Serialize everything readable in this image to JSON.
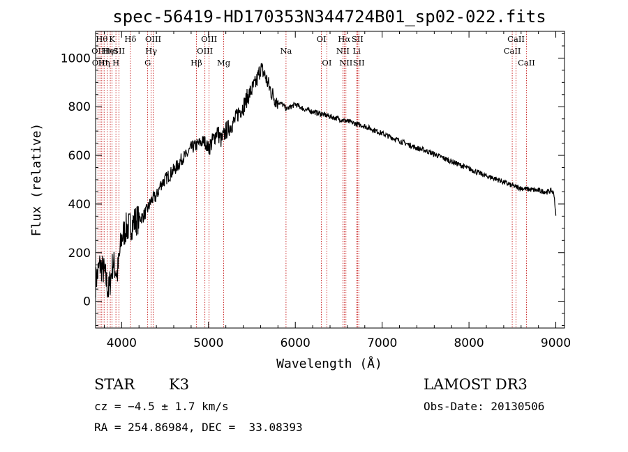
{
  "chart_data": {
    "type": "line",
    "title": "spec-56419-HD170353N344724B01_sp02-022.fits",
    "xlabel": "Wavelength (Å)",
    "ylabel": "Flux (relative)",
    "xlim": [
      3700,
      9100
    ],
    "ylim": [
      -110,
      1110
    ],
    "x_ticks": [
      4000,
      5000,
      6000,
      7000,
      8000,
      9000
    ],
    "y_ticks": [
      0,
      200,
      400,
      600,
      800,
      1000
    ],
    "grid": false,
    "series": [
      {
        "x": [
          3700,
          3750,
          3800,
          3850,
          3900,
          3950,
          4000,
          4050,
          4100,
          4150,
          4200,
          4250,
          4300,
          4350,
          4400,
          4450,
          4500,
          4550,
          4600,
          4650,
          4700,
          4750,
          4800,
          4850,
          4900,
          4950,
          5000,
          5050,
          5100,
          5150,
          5200,
          5250,
          5300,
          5350,
          5400,
          5450,
          5500,
          5550,
          5600,
          5650,
          5700,
          5750,
          5800,
          5850,
          5900,
          5950,
          6000,
          6100,
          6200,
          6300,
          6400,
          6500,
          6600,
          6700,
          6800,
          6900,
          7000,
          7100,
          7200,
          7300,
          7400,
          7500,
          7600,
          7700,
          7800,
          7900,
          8000,
          8100,
          8200,
          8300,
          8400,
          8500,
          8600,
          8700,
          8800,
          8900,
          8950,
          8980,
          9000
        ],
        "y": [
          80,
          150,
          120,
          40,
          160,
          110,
          260,
          300,
          310,
          330,
          340,
          350,
          380,
          420,
          430,
          480,
          500,
          520,
          540,
          560,
          590,
          600,
          630,
          640,
          650,
          660,
          630,
          660,
          700,
          660,
          700,
          720,
          740,
          780,
          800,
          840,
          870,
          900,
          960,
          930,
          880,
          840,
          820,
          810,
          790,
          800,
          810,
          790,
          780,
          770,
          760,
          750,
          740,
          730,
          720,
          705,
          690,
          675,
          660,
          645,
          630,
          620,
          605,
          590,
          575,
          560,
          545,
          530,
          515,
          505,
          490,
          475,
          465,
          460,
          455,
          450,
          455,
          440,
          350
        ]
      }
    ],
    "line_markers": [
      {
        "wl": 3727,
        "label": "OII",
        "row": 1
      },
      {
        "wl": 3750,
        "label": "OIII",
        "row": 2
      },
      {
        "wl": 3771,
        "label": "Hθ",
        "row": 0
      },
      {
        "wl": 3798,
        "label": "Hη",
        "row": 2
      },
      {
        "wl": 3835,
        "label": "Hη",
        "row": 1
      },
      {
        "wl": 3869,
        "label": "HeI",
        "row": 1
      },
      {
        "wl": 3889,
        "label": "K",
        "row": 0
      },
      {
        "wl": 3934,
        "label": "H",
        "row": 2
      },
      {
        "wl": 3970,
        "label": "SII",
        "row": 1
      },
      {
        "wl": 4101,
        "label": "Hδ",
        "row": 0
      },
      {
        "wl": 4300,
        "label": "G",
        "row": 2
      },
      {
        "wl": 4340,
        "label": "Hγ",
        "row": 1
      },
      {
        "wl": 4363,
        "label": "OIII",
        "row": 0
      },
      {
        "wl": 4861,
        "label": "Hβ",
        "row": 2
      },
      {
        "wl": 4959,
        "label": "OIII",
        "row": 1
      },
      {
        "wl": 5007,
        "label": "OIII",
        "row": 0
      },
      {
        "wl": 5175,
        "label": "Mg",
        "row": 2
      },
      {
        "wl": 5893,
        "label": "Na",
        "row": 1
      },
      {
        "wl": 6300,
        "label": "OI",
        "row": 0
      },
      {
        "wl": 6363,
        "label": "OI",
        "row": 2
      },
      {
        "wl": 6548,
        "label": "NII",
        "row": 1
      },
      {
        "wl": 6563,
        "label": "Hα",
        "row": 0
      },
      {
        "wl": 6583,
        "label": "NII",
        "row": 2
      },
      {
        "wl": 6707,
        "label": "Li",
        "row": 1
      },
      {
        "wl": 6716,
        "label": "SII",
        "row": 0
      },
      {
        "wl": 6731,
        "label": "SII",
        "row": 2
      },
      {
        "wl": 8498,
        "label": "CaII",
        "row": 1
      },
      {
        "wl": 8542,
        "label": "CaII",
        "row": 0
      },
      {
        "wl": 8662,
        "label": "CaII",
        "row": 2
      }
    ]
  },
  "info": {
    "class": "STAR",
    "subclass": "K3",
    "survey": "LAMOST DR3",
    "cz": "cz = −4.5 ± 1.7 km/s",
    "obs_date": "Obs-Date: 20130506",
    "coords": "RA = 254.86984, DEC =  33.08393"
  }
}
